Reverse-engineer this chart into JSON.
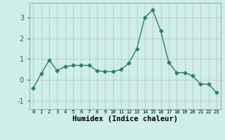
{
  "x": [
    0,
    1,
    2,
    3,
    4,
    5,
    6,
    7,
    8,
    9,
    10,
    11,
    12,
    13,
    14,
    15,
    16,
    17,
    18,
    19,
    20,
    21,
    22,
    23
  ],
  "y": [
    -0.4,
    0.3,
    0.95,
    0.45,
    0.65,
    0.7,
    0.7,
    0.7,
    0.45,
    0.4,
    0.4,
    0.5,
    0.8,
    1.5,
    3.0,
    3.35,
    2.35,
    0.85,
    0.35,
    0.35,
    0.2,
    -0.2,
    -0.2,
    -0.6
  ],
  "line_color": "#2e7d6e",
  "marker": "D",
  "markersize": 2.5,
  "bg_color": "#ceeee8",
  "grid_color": "#c4b8c8",
  "xlabel": "Humidex (Indice chaleur)",
  "xlabel_fontsize": 7.5,
  "ylabel_ticks": [
    -1,
    0,
    1,
    2,
    3
  ],
  "xtick_labels": [
    "0",
    "1",
    "2",
    "3",
    "4",
    "5",
    "6",
    "7",
    "8",
    "9",
    "10",
    "11",
    "12",
    "13",
    "14",
    "15",
    "16",
    "17",
    "18",
    "19",
    "20",
    "21",
    "22",
    "23"
  ],
  "xlim": [
    -0.5,
    23.5
  ],
  "ylim": [
    -1.4,
    3.7
  ]
}
